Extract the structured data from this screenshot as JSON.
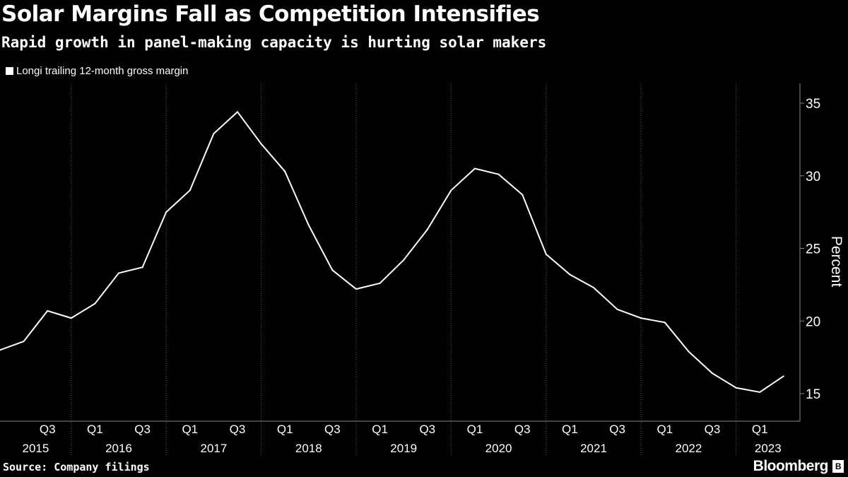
{
  "chart_data": {
    "type": "line",
    "title": "Solar Margins Fall as Competition Intensifies",
    "subtitle": "Rapid growth in panel-making capacity is hurting solar makers",
    "ylabel": "Percent",
    "ylim": [
      13.3,
      36.5
    ],
    "yticks": [
      15,
      20,
      25,
      30,
      35
    ],
    "grid": true,
    "legend_position": "top-left",
    "series": [
      {
        "name": "Longi trailing 12-month gross margin",
        "color": "#ffffff",
        "x": [
          "2015Q1",
          "2015Q2",
          "2015Q3",
          "2015Q4",
          "2016Q1",
          "2016Q2",
          "2016Q3",
          "2016Q4",
          "2017Q1",
          "2017Q2",
          "2017Q3",
          "2017Q4",
          "2018Q1",
          "2018Q2",
          "2018Q3",
          "2018Q4",
          "2019Q1",
          "2019Q2",
          "2019Q3",
          "2019Q4",
          "2020Q1",
          "2020Q2",
          "2020Q3",
          "2020Q4",
          "2021Q1",
          "2021Q2",
          "2021Q3",
          "2021Q4",
          "2022Q1",
          "2022Q2",
          "2022Q3",
          "2022Q4",
          "2023Q1",
          "2023Q2"
        ],
        "values": [
          18.0,
          18.6,
          20.7,
          20.2,
          21.2,
          23.3,
          23.7,
          27.5,
          29.0,
          32.9,
          34.4,
          32.2,
          30.3,
          26.6,
          23.5,
          22.2,
          22.6,
          24.2,
          26.3,
          29.0,
          30.5,
          30.1,
          28.7,
          24.6,
          23.2,
          22.3,
          20.8,
          20.2,
          19.9,
          17.9,
          16.4,
          15.4,
          15.1,
          16.2
        ]
      }
    ],
    "years": [
      "2015",
      "2016",
      "2017",
      "2018",
      "2019",
      "2020",
      "2021",
      "2022",
      "2023"
    ],
    "quarter_labels": [
      "Q1",
      "Q3"
    ]
  },
  "source": "Source: Company filings",
  "brand": "Bloomberg",
  "brand_mark": "B"
}
